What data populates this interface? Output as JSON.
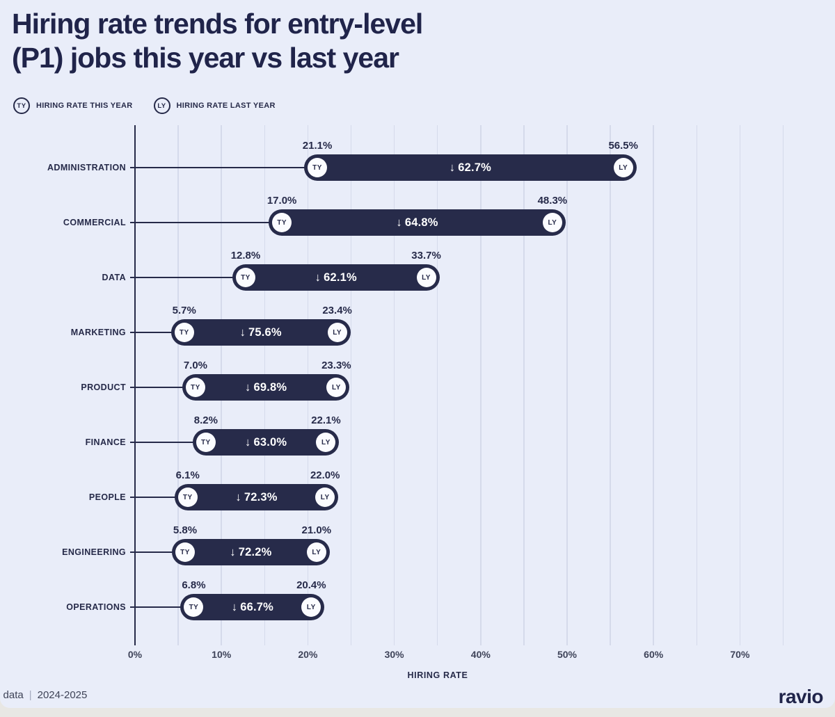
{
  "title": {
    "line1": "Hiring rate trends for entry-level",
    "line2": "(P1) jobs this year vs last year"
  },
  "legend": {
    "items": [
      {
        "badge": "TY",
        "label": "HIRING RATE THIS YEAR"
      },
      {
        "badge": "LY",
        "label": "HIRING RATE LAST YEAR"
      }
    ]
  },
  "chart_data": {
    "type": "dumbbell",
    "title": "Hiring rate trends for entry-level (P1) jobs this year vs last year",
    "categories": [
      "ADMINISTRATION",
      "COMMERCIAL",
      "DATA",
      "MARKETING",
      "PRODUCT",
      "FINANCE",
      "PEOPLE",
      "ENGINEERING",
      "OPERATIONS"
    ],
    "series": [
      {
        "name": "HIRING RATE THIS YEAR",
        "badge": "TY",
        "values": [
          21.1,
          17.0,
          12.8,
          5.7,
          7.0,
          8.2,
          6.1,
          5.8,
          6.8
        ]
      },
      {
        "name": "HIRING RATE LAST YEAR",
        "badge": "LY",
        "values": [
          56.5,
          48.3,
          33.7,
          23.4,
          23.3,
          22.1,
          22.0,
          21.0,
          20.4
        ]
      }
    ],
    "change_pct": [
      -62.7,
      -64.8,
      -62.1,
      -75.6,
      -69.8,
      -63.0,
      -72.3,
      -72.2,
      -66.7
    ],
    "down_arrow": "↓",
    "unit": "%",
    "xlabel": "HIRING RATE",
    "x_tick_values": [
      0,
      10,
      20,
      30,
      40,
      50,
      60,
      70
    ],
    "x_tick_labels": [
      "0%",
      "10%",
      "20%",
      "30%",
      "40%",
      "50%",
      "60%",
      "70%"
    ],
    "xlim": [
      0,
      75.5
    ],
    "grid_step": 5,
    "grid": "vertical-on"
  },
  "footer": {
    "source_text": "o data",
    "separator": "|",
    "period": "2024-2025",
    "logo": "ravio"
  },
  "colors": {
    "background": "#e9edf9",
    "bar": "#272b4a",
    "text": "#20244a",
    "gridline": "#d5daeb",
    "axis": "#262a49",
    "badge_fill": "#fbfcff",
    "tick_text": "#3e4359",
    "change_text": "#ffffff"
  }
}
